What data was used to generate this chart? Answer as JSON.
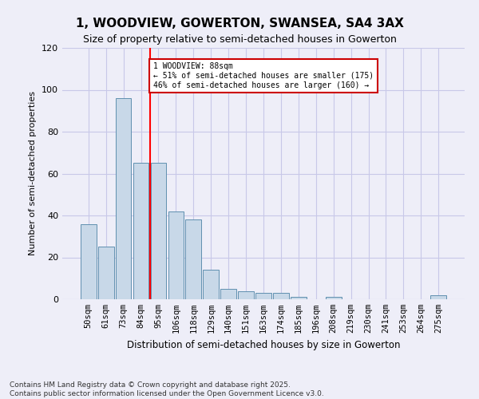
{
  "title": "1, WOODVIEW, GOWERTON, SWANSEA, SA4 3AX",
  "subtitle": "Size of property relative to semi-detached houses in Gowerton",
  "xlabel": "Distribution of semi-detached houses by size in Gowerton",
  "ylabel": "Number of semi-detached properties",
  "categories": [
    "50sqm",
    "61sqm",
    "73sqm",
    "84sqm",
    "95sqm",
    "106sqm",
    "118sqm",
    "129sqm",
    "140sqm",
    "151sqm",
    "163sqm",
    "174sqm",
    "185sqm",
    "196sqm",
    "208sqm",
    "219sqm",
    "230sqm",
    "241sqm",
    "253sqm",
    "264sqm",
    "275sqm"
  ],
  "values": [
    36,
    25,
    96,
    65,
    65,
    42,
    38,
    14,
    5,
    4,
    3,
    3,
    1,
    0,
    1,
    0,
    0,
    0,
    0,
    0,
    2
  ],
  "bar_color": "#c8d8e8",
  "bar_edge_color": "#6090b0",
  "vline_x": 3.5,
  "smaller_pct": 51,
  "smaller_count": 175,
  "larger_pct": 46,
  "larger_count": 160,
  "footnote": "Contains HM Land Registry data © Crown copyright and database right 2025.\nContains public sector information licensed under the Open Government Licence v3.0.",
  "ylim": [
    0,
    120
  ],
  "yticks": [
    0,
    20,
    40,
    60,
    80,
    100,
    120
  ],
  "grid_color": "#c8c8e8",
  "bg_color": "#eeeef8",
  "title_fontsize": 11,
  "subtitle_fontsize": 9
}
